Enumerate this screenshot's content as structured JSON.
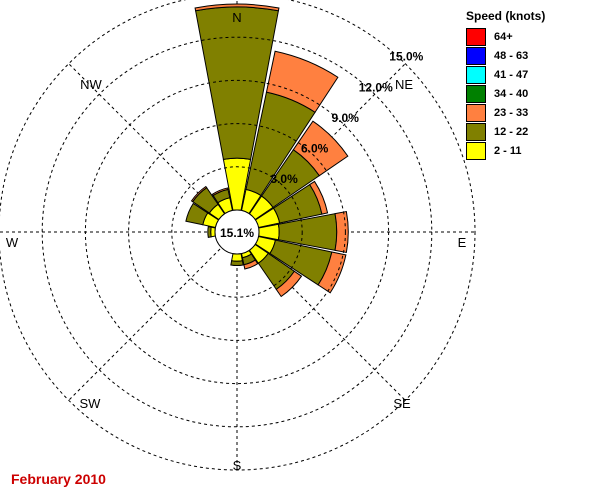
{
  "chart_data": {
    "type": "windrose",
    "directions": [
      {
        "label": "N",
        "values": [
          3.6,
          10.5,
          0.2
        ]
      },
      {
        "label": "NNE",
        "values": [
          1.5,
          6.9,
          2.9
        ]
      },
      {
        "label": "NE",
        "values": [
          1.5,
          3.9,
          2.4
        ]
      },
      {
        "label": "ENE",
        "values": [
          1.5,
          3.0,
          0.4
        ]
      },
      {
        "label": "E",
        "values": [
          1.4,
          4.0,
          0.8
        ]
      },
      {
        "label": "ESE",
        "values": [
          1.2,
          4.0,
          1.0
        ]
      },
      {
        "label": "SE",
        "values": [
          1.1,
          2.2,
          0.6
        ]
      },
      {
        "label": "SSE",
        "values": [
          0.3,
          0.5,
          0.3
        ]
      },
      {
        "label": "S",
        "values": [
          0.5,
          0.3,
          0.0
        ]
      },
      {
        "label": "SSW",
        "values": [
          0.0,
          0.0,
          0.0
        ]
      },
      {
        "label": "SW",
        "values": [
          0.0,
          0.0,
          0.0
        ]
      },
      {
        "label": "WSW",
        "values": [
          0.0,
          0.0,
          0.0
        ]
      },
      {
        "label": "W",
        "values": [
          0.3,
          0.2,
          0.0
        ]
      },
      {
        "label": "WNW",
        "values": [
          0.9,
          1.2,
          0.0
        ]
      },
      {
        "label": "NW",
        "values": [
          0.8,
          1.4,
          0.1
        ]
      },
      {
        "label": "NNW",
        "values": [
          0.9,
          0.6,
          0.1
        ]
      }
    ],
    "calm_label": "15.1%",
    "ring_labels": [
      "3.0%",
      "6.0%",
      "9.0%",
      "12.0%",
      "15.0%"
    ],
    "ring_values": [
      3,
      6,
      9,
      12,
      15
    ],
    "compass_labels": [
      "N",
      "NE",
      "E",
      "SE",
      "S",
      "SW",
      "W",
      "NW"
    ],
    "legend_title": "Speed (knots)",
    "legend": [
      {
        "label": "64+",
        "color": "#ff0000"
      },
      {
        "label": "48 - 63",
        "color": "#0000ff"
      },
      {
        "label": "41 - 47",
        "color": "#00ffff"
      },
      {
        "label": "34 - 40",
        "color": "#008000"
      },
      {
        "label": "23 - 33",
        "color": "#ff8040"
      },
      {
        "label": "12 - 22",
        "color": "#808000"
      },
      {
        "label": "2 - 11",
        "color": "#ffff00"
      }
    ],
    "segment_colors": [
      "#ffff00",
      "#808000",
      "#ff8040"
    ],
    "title": "February 2010",
    "grid": true
  }
}
